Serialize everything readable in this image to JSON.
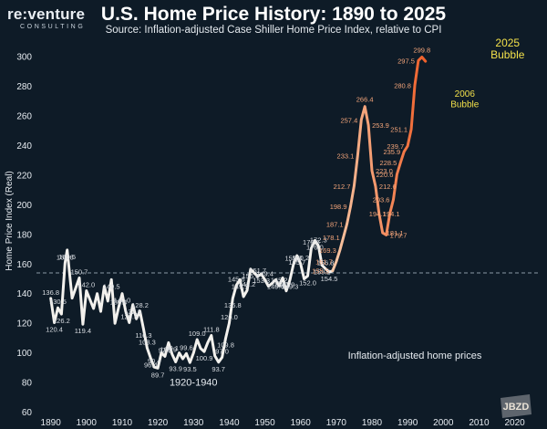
{
  "logo": {
    "word": "re:venture",
    "sub": "CONSULTING"
  },
  "title": "U.S. Home Price History: 1890 to 2025",
  "subtitle": "Source: Inflation-adjusted Case Shiller Home Price Index, relative to CPI",
  "watermark": "JBZD",
  "colors": {
    "background": "#0e1b27",
    "early_line": "#f3f1ed",
    "late_line_start": "#f7c8a6",
    "late_line_end": "#f0602a",
    "bubble_label": "#f2e04a",
    "value_label_late": "#f4a57a",
    "value_label_early": "#d9dde2",
    "gridline": "#8a98a6"
  },
  "chart_data": {
    "type": "line",
    "title": "U.S. Home Price History: 1890 to 2025",
    "subtitle": "Source: Inflation-adjusted Case Shiller Home Price Index, relative to CPI",
    "xlabel": "",
    "ylabel": "Home Price Index (Real)",
    "xlim": [
      1886,
      2027
    ],
    "ylim": [
      56,
      310
    ],
    "x_ticks": [
      1890,
      1900,
      1910,
      1920,
      1930,
      1940,
      1950,
      1960,
      1970,
      1980,
      1990,
      2000,
      2010,
      2020
    ],
    "y_ticks": [
      60,
      80,
      100,
      120,
      140,
      160,
      180,
      200,
      220,
      240,
      260,
      280,
      300
    ],
    "reference_line": {
      "y": 154,
      "style": "dashed"
    },
    "series": [
      {
        "points": [
          [
            1890,
            136.8
          ],
          [
            1891,
            120.4
          ],
          [
            1892,
            130.5
          ],
          [
            1893,
            126.2
          ],
          [
            1894,
            160.6
          ],
          [
            1894.6,
            169.5
          ],
          [
            1896,
            137
          ],
          [
            1898,
            150.7
          ],
          [
            1899,
            119.4
          ],
          [
            1900,
            142.0
          ],
          [
            1902,
            130
          ],
          [
            1903,
            140
          ],
          [
            1904,
            128
          ],
          [
            1905,
            145
          ],
          [
            1906,
            135
          ],
          [
            1907,
            149.5
          ],
          [
            1908,
            120
          ],
          [
            1909,
            130.4
          ],
          [
            1910,
            140.0
          ],
          [
            1911,
            128
          ],
          [
            1912,
            120.5
          ],
          [
            1913,
            132.6
          ],
          [
            1914,
            123
          ],
          [
            1915,
            128.2
          ],
          [
            1916,
            116.3
          ],
          [
            1917,
            103.3
          ],
          [
            1918,
            96.4
          ],
          [
            1919,
            90.4
          ],
          [
            1920,
            89.7
          ],
          [
            1921,
            100
          ],
          [
            1922,
            97.6
          ],
          [
            1923,
            106.9
          ],
          [
            1924,
            99.1
          ],
          [
            1925,
            93.9
          ],
          [
            1926,
            100
          ],
          [
            1927,
            96
          ],
          [
            1928,
            99.6
          ],
          [
            1929,
            93.5
          ],
          [
            1930,
            100
          ],
          [
            1931,
            109.0
          ],
          [
            1932,
            103
          ],
          [
            1933,
            100.9
          ],
          [
            1934,
            107
          ],
          [
            1935,
            111.8
          ],
          [
            1936,
            98
          ],
          [
            1937,
            93.7
          ],
          [
            1938,
            97.0
          ],
          [
            1939,
            109.8
          ],
          [
            1940,
            120.0
          ],
          [
            1941,
            136.8
          ],
          [
            1942,
            145.6
          ],
          [
            1943,
            149.5
          ],
          [
            1944,
            138
          ],
          [
            1945,
            142.2
          ],
          [
            1946,
            156.6
          ],
          [
            1947,
            154
          ],
          [
            1948,
            151.7
          ],
          [
            1949,
            153.3
          ],
          [
            1950,
            149.4
          ],
          [
            1951,
            145
          ],
          [
            1952,
            147
          ],
          [
            1953,
            149.4
          ],
          [
            1954,
            145.2
          ],
          [
            1955,
            150.7
          ],
          [
            1956,
            141.9
          ],
          [
            1957,
            149.3
          ],
          [
            1958,
            159.8
          ],
          [
            1959,
            165.7
          ],
          [
            1960,
            160.2
          ],
          [
            1961,
            150
          ],
          [
            1962,
            152.0
          ],
          [
            1963,
            170.6
          ],
          [
            1964,
            176.0
          ],
          [
            1965,
            172.3
          ],
          [
            1966,
            159.2
          ],
          [
            1967,
            156.8
          ],
          [
            1968,
            154.5
          ],
          [
            1969,
            155.5
          ]
        ]
      },
      {
        "points": [
          [
            1969,
            155.5
          ],
          [
            1970,
            161.7
          ],
          [
            1971,
            169.3
          ],
          [
            1972,
            178.1
          ],
          [
            1973,
            187.1
          ],
          [
            1974,
            198.9
          ],
          [
            1975,
            212.7
          ],
          [
            1976,
            233.1
          ],
          [
            1977,
            257.4
          ],
          [
            1978,
            266.4
          ],
          [
            1979,
            253.9
          ],
          [
            1980,
            223.0
          ],
          [
            1981,
            212.6
          ],
          [
            1982,
            194.1
          ],
          [
            1983,
            181.1
          ],
          [
            1984,
            179.7
          ],
          [
            1985,
            194.1
          ],
          [
            1986,
            203.6
          ],
          [
            1987,
            220.6
          ],
          [
            1988,
            228.5
          ],
          [
            1989,
            235.9
          ],
          [
            1990,
            239.7
          ],
          [
            1991,
            251.1
          ],
          [
            1992,
            280.8
          ],
          [
            1993,
            297.5
          ],
          [
            1994,
            299.8
          ],
          [
            1995,
            297
          ]
        ]
      }
    ],
    "value_labels": [
      {
        "x": 1890,
        "y": 136.8,
        "text": "136.8"
      },
      {
        "x": 1891,
        "y": 120.4,
        "text": "120.4"
      },
      {
        "x": 1892,
        "y": 130.5,
        "text": "130.5"
      },
      {
        "x": 1893,
        "y": 126.2,
        "text": "126.2"
      },
      {
        "x": 1894,
        "y": 160.6,
        "text": "160.6"
      },
      {
        "x": 1894.6,
        "y": 169.5,
        "text": "169.5"
      },
      {
        "x": 1898,
        "y": 150.7,
        "text": "150.7"
      },
      {
        "x": 1899,
        "y": 119.4,
        "text": "119.4"
      },
      {
        "x": 1900,
        "y": 142.0,
        "text": "142.0"
      },
      {
        "x": 1907,
        "y": 149.5,
        "text": "149.5"
      },
      {
        "x": 1909,
        "y": 130.4,
        "text": "130.4"
      },
      {
        "x": 1910,
        "y": 140.0,
        "text": "140.0"
      },
      {
        "x": 1912,
        "y": 120.5,
        "text": "120.5"
      },
      {
        "x": 1913,
        "y": 132.6,
        "text": "132.6"
      },
      {
        "x": 1915,
        "y": 128.2,
        "text": "128.2"
      },
      {
        "x": 1916,
        "y": 116.3,
        "text": "116.3"
      },
      {
        "x": 1917,
        "y": 103.3,
        "text": "103.3"
      },
      {
        "x": 1918,
        "y": 96.4,
        "text": "96.4"
      },
      {
        "x": 1919,
        "y": 90.4,
        "text": "90.4"
      },
      {
        "x": 1920,
        "y": 89.7,
        "text": "89.7"
      },
      {
        "x": 1922,
        "y": 97.6,
        "text": "97.6"
      },
      {
        "x": 1923,
        "y": 106.9,
        "text": "106.9"
      },
      {
        "x": 1924,
        "y": 99.1,
        "text": "99.1"
      },
      {
        "x": 1925,
        "y": 93.9,
        "text": "93.9"
      },
      {
        "x": 1928,
        "y": 99.6,
        "text": "99.6"
      },
      {
        "x": 1929,
        "y": 93.5,
        "text": "93.5"
      },
      {
        "x": 1931,
        "y": 109.0,
        "text": "109.0"
      },
      {
        "x": 1933,
        "y": 100.9,
        "text": "100.9"
      },
      {
        "x": 1935,
        "y": 111.8,
        "text": "111.8"
      },
      {
        "x": 1937,
        "y": 93.7,
        "text": "93.7"
      },
      {
        "x": 1938,
        "y": 97.0,
        "text": "97.0"
      },
      {
        "x": 1939,
        "y": 109.8,
        "text": "109.8"
      },
      {
        "x": 1940,
        "y": 120.0,
        "text": "120.0"
      },
      {
        "x": 1941,
        "y": 136.8,
        "text": "136.8"
      },
      {
        "x": 1942,
        "y": 145.6,
        "text": "145.6"
      },
      {
        "x": 1943,
        "y": 149.5,
        "text": "149.5"
      },
      {
        "x": 1945,
        "y": 142.2,
        "text": "142.2"
      },
      {
        "x": 1946,
        "y": 156.6,
        "text": "156.6"
      },
      {
        "x": 1948,
        "y": 151.7,
        "text": "151.7"
      },
      {
        "x": 1949,
        "y": 153.3,
        "text": "153.3"
      },
      {
        "x": 1950,
        "y": 149.4,
        "text": "149.4"
      },
      {
        "x": 1953,
        "y": 149.4,
        "text": "149.4"
      },
      {
        "x": 1954,
        "y": 145.2,
        "text": "145.2"
      },
      {
        "x": 1955,
        "y": 150.7,
        "text": "150.7"
      },
      {
        "x": 1956,
        "y": 141.9,
        "text": "141.9"
      },
      {
        "x": 1957,
        "y": 149.3,
        "text": "149.3"
      },
      {
        "x": 1958,
        "y": 159.8,
        "text": "159.8"
      },
      {
        "x": 1959,
        "y": 165.7,
        "text": "165.7"
      },
      {
        "x": 1960,
        "y": 160.2,
        "text": "160.2"
      },
      {
        "x": 1962,
        "y": 152.0,
        "text": "152.0"
      },
      {
        "x": 1963,
        "y": 170.6,
        "text": "170.6"
      },
      {
        "x": 1964,
        "y": 176.0,
        "text": "176.0"
      },
      {
        "x": 1965,
        "y": 172.3,
        "text": "172.3"
      },
      {
        "x": 1966,
        "y": 159.2,
        "text": "159.2"
      },
      {
        "x": 1967,
        "y": 156.8,
        "text": "156.8"
      },
      {
        "x": 1968,
        "y": 154.5,
        "text": "154.5"
      },
      {
        "x": 1969,
        "y": 155.5,
        "text": "155.5"
      },
      {
        "x": 1970,
        "y": 161.7,
        "text": "161.7"
      },
      {
        "x": 1971,
        "y": 169.3,
        "text": "169.3"
      },
      {
        "x": 1972,
        "y": 178.1,
        "text": "178.1"
      },
      {
        "x": 1973,
        "y": 187.1,
        "text": "187.1"
      },
      {
        "x": 1974,
        "y": 198.9,
        "text": "198.9"
      },
      {
        "x": 1975,
        "y": 212.7,
        "text": "212.7"
      },
      {
        "x": 1976,
        "y": 233.1,
        "text": "233.1"
      },
      {
        "x": 1977,
        "y": 257.4,
        "text": "257.4"
      },
      {
        "x": 1978,
        "y": 266.4,
        "text": "266.4"
      },
      {
        "x": 1979,
        "y": 253.9,
        "text": "253.9"
      },
      {
        "x": 1980,
        "y": 223.0,
        "text": "223.0"
      },
      {
        "x": 1981,
        "y": 212.6,
        "text": "212.6"
      },
      {
        "x": 1982,
        "y": 194.1,
        "text": "194.1"
      },
      {
        "x": 1983,
        "y": 181.1,
        "text": "181.1"
      },
      {
        "x": 1984,
        "y": 179.7,
        "text": "179.7"
      },
      {
        "x": 1985,
        "y": 194.1,
        "text": "194.1"
      },
      {
        "x": 1986,
        "y": 203.6,
        "text": "203.6"
      },
      {
        "x": 1987,
        "y": 220.6,
        "text": "220.6"
      },
      {
        "x": 1988,
        "y": 228.5,
        "text": "228.5"
      },
      {
        "x": 1989,
        "y": 235.9,
        "text": "235.9"
      },
      {
        "x": 1990,
        "y": 239.7,
        "text": "239.7"
      },
      {
        "x": 1991,
        "y": 251.1,
        "text": "251.1"
      },
      {
        "x": 1992,
        "y": 280.8,
        "text": "280.8"
      },
      {
        "x": 1993,
        "y": 297.5,
        "text": "297.5"
      },
      {
        "x": 1994,
        "y": 299.8,
        "text": "299.8"
      }
    ],
    "annotations": [
      {
        "text": "2006",
        "x": 2006,
        "y": 273
      },
      {
        "text": "Bubble",
        "x": 2006,
        "y": 266
      },
      {
        "text": "2025",
        "x": 2018,
        "y": 307
      },
      {
        "text": "Bubble",
        "x": 2018,
        "y": 299
      },
      {
        "text": "Inflation-adjusted home prices",
        "x": 1992,
        "y": 96
      },
      {
        "text": "1920-1940",
        "x": 1930,
        "y": 78
      }
    ]
  }
}
